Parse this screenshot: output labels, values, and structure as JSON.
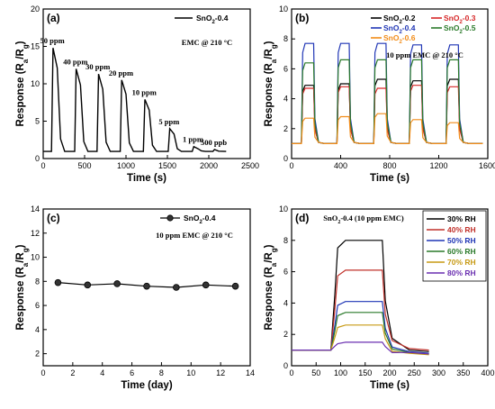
{
  "chart_data": [
    {
      "type": "line",
      "panel_label": "(a)",
      "xlabel": "Time (s)",
      "ylabel": "Response (R_a/R_g)",
      "xlim": [
        0,
        2500
      ],
      "ylim": [
        0,
        20
      ],
      "xticks": [
        0,
        500,
        1000,
        1500,
        2000,
        2500
      ],
      "yticks": [
        0,
        5,
        10,
        15,
        20
      ],
      "annotation": "EMC @ 210 °C",
      "legend": {
        "position": "top-right",
        "entries": [
          {
            "name": "SnO2-0.4",
            "color": "#000000"
          }
        ]
      },
      "series": [
        {
          "name": "SnO2-0.4",
          "color": "#000000",
          "pulses": [
            {
              "start": 100,
              "end": 170,
              "value": 14.8,
              "label": "50 ppm"
            },
            {
              "start": 380,
              "end": 450,
              "value": 12.0,
              "label": "40 ppm"
            },
            {
              "start": 650,
              "end": 720,
              "value": 11.3,
              "label": "30 ppm"
            },
            {
              "start": 930,
              "end": 1000,
              "value": 10.5,
              "label": "20 ppm"
            },
            {
              "start": 1210,
              "end": 1280,
              "value": 7.9,
              "label": "10 ppm"
            },
            {
              "start": 1510,
              "end": 1580,
              "value": 4.0,
              "label": "5 ppm"
            },
            {
              "start": 1800,
              "end": 1870,
              "value": 1.6,
              "label": "1 ppm"
            },
            {
              "start": 2050,
              "end": 2120,
              "value": 1.2,
              "label": "500 ppb"
            }
          ]
        }
      ]
    },
    {
      "type": "line",
      "panel_label": "(b)",
      "xlabel": "Time (s)",
      "ylabel": "Response (R_a/R_g)",
      "xlim": [
        0,
        1600
      ],
      "ylim": [
        0,
        10
      ],
      "xticks": [
        0,
        400,
        800,
        1200,
        1600
      ],
      "yticks": [
        0,
        2,
        4,
        6,
        8,
        10
      ],
      "annotation": "10 ppm EMC @ 210 °C",
      "legend": {
        "position": "top",
        "entries": [
          {
            "name": "SnO2-0.2",
            "color": "#000000"
          },
          {
            "name": "SnO2-0.3",
            "color": "#d62728"
          },
          {
            "name": "SnO2-0.4",
            "color": "#1f35b5"
          },
          {
            "name": "SnO2-0.5",
            "color": "#2a7a2a"
          },
          {
            "name": "SnO2-0.6",
            "color": "#f28c18"
          }
        ]
      },
      "pulse_windows": [
        [
          80,
          180
        ],
        [
          370,
          470
        ],
        [
          670,
          770
        ],
        [
          960,
          1060
        ],
        [
          1260,
          1360
        ]
      ],
      "series": [
        {
          "name": "SnO2-0.2",
          "color": "#000000",
          "values": [
            4.9,
            5.0,
            5.3,
            5.2,
            5.3
          ]
        },
        {
          "name": "SnO2-0.3",
          "color": "#d62728",
          "values": [
            4.7,
            4.8,
            4.7,
            4.9,
            4.8
          ]
        },
        {
          "name": "SnO2-0.4",
          "color": "#1f35b5",
          "values": [
            7.7,
            7.7,
            7.7,
            7.6,
            7.6
          ]
        },
        {
          "name": "SnO2-0.5",
          "color": "#2a7a2a",
          "values": [
            6.4,
            6.6,
            6.6,
            6.6,
            6.6
          ]
        },
        {
          "name": "SnO2-0.6",
          "color": "#f28c18",
          "values": [
            2.7,
            2.8,
            3.0,
            2.6,
            2.4
          ]
        }
      ]
    },
    {
      "type": "line",
      "panel_label": "(c)",
      "xlabel": "Time (day)",
      "ylabel": "Response (R_a/R_g)",
      "xlim": [
        0,
        14
      ],
      "ylim": [
        1,
        14
      ],
      "xticks": [
        0,
        2,
        4,
        6,
        8,
        10,
        12,
        14
      ],
      "yticks": [
        2,
        4,
        6,
        8,
        10,
        12,
        14
      ],
      "annotation": "10 ppm EMC @ 210 °C",
      "legend": {
        "position": "top-right",
        "entries": [
          {
            "name": "SnO2-0.4",
            "color": "#000000"
          }
        ]
      },
      "series": [
        {
          "name": "SnO2-0.4",
          "color": "#000000",
          "x": [
            1,
            3,
            5,
            7,
            9,
            11,
            13
          ],
          "y": [
            7.9,
            7.7,
            7.8,
            7.6,
            7.5,
            7.7,
            7.6
          ]
        }
      ]
    },
    {
      "type": "line",
      "panel_label": "(d)",
      "xlabel": "Time (s)",
      "ylabel": "Response (R_a/R_g)",
      "xlim": [
        0,
        400
      ],
      "ylim": [
        0,
        10
      ],
      "xticks": [
        0,
        50,
        100,
        150,
        200,
        250,
        300,
        350,
        400
      ],
      "yticks": [
        0,
        2,
        4,
        6,
        8,
        10
      ],
      "annotation": "SnO2-0.4 (10 ppm EMC)",
      "legend": {
        "position": "top-right",
        "entries": [
          {
            "name": "30% RH",
            "color": "#000000"
          },
          {
            "name": "40% RH",
            "color": "#c0302a"
          },
          {
            "name": "50% RH",
            "color": "#1f35b5"
          },
          {
            "name": "60% RH",
            "color": "#2a7a2a"
          },
          {
            "name": "70% RH",
            "color": "#c79a14"
          },
          {
            "name": "80% RH",
            "color": "#6a2fb0"
          }
        ]
      },
      "pulse_window": [
        80,
        185
      ],
      "series": [
        {
          "name": "30% RH",
          "color": "#000000",
          "peak": 8.0,
          "tail": 0.9
        },
        {
          "name": "40% RH",
          "color": "#c0302a",
          "peak": 6.1,
          "tail": 1.0
        },
        {
          "name": "50% RH",
          "color": "#1f35b5",
          "peak": 4.1,
          "tail": 0.8
        },
        {
          "name": "60% RH",
          "color": "#2a7a2a",
          "peak": 3.4,
          "tail": 0.75
        },
        {
          "name": "70% RH",
          "color": "#c79a14",
          "peak": 2.6,
          "tail": 0.7
        },
        {
          "name": "80% RH",
          "color": "#6a2fb0",
          "peak": 1.5,
          "tail": 0.75
        }
      ]
    }
  ]
}
